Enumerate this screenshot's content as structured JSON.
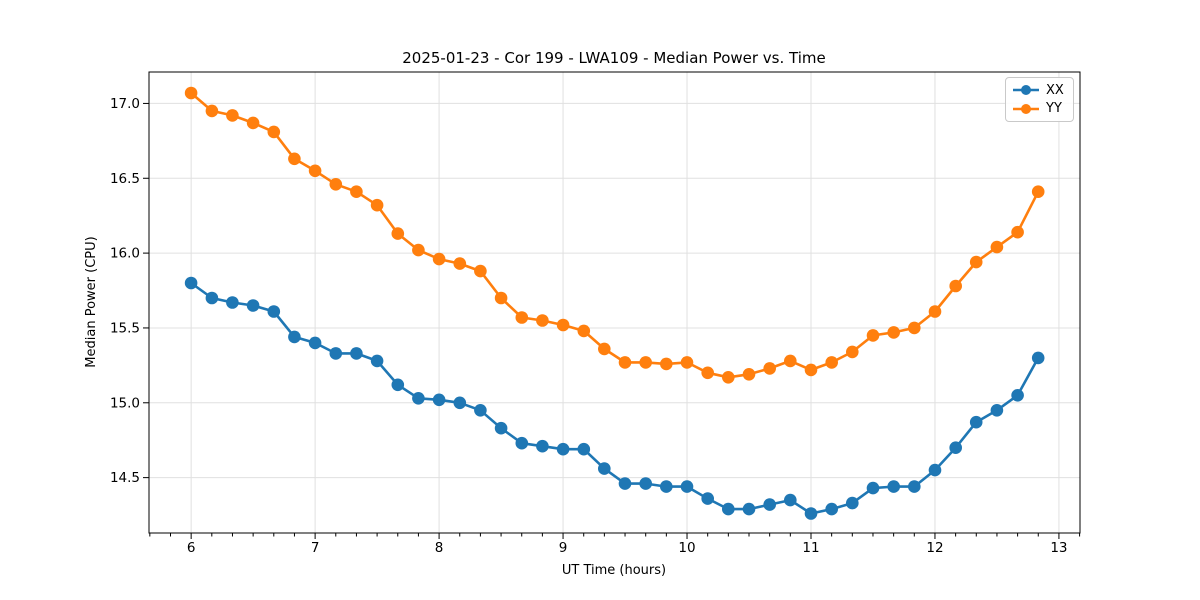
{
  "figure": {
    "background": "#ffffff",
    "spine_color": "#000000",
    "grid_color": "#e0e0e0",
    "tick_label_color": "#000000"
  },
  "legend": {
    "entries": [
      {
        "label": "XX",
        "color": "#1f77b4"
      },
      {
        "label": "YY",
        "color": "#ff7f0e"
      }
    ]
  },
  "chart_data": {
    "type": "line",
    "title": "2025-01-23 - Cor 199 - LWA109 - Median Power vs. Time",
    "xlabel": "UT Time (hours)",
    "ylabel": "Median Power (CPU)",
    "xlim": [
      5.66,
      13.17
    ],
    "ylim": [
      14.13,
      17.21
    ],
    "x_major_ticks": [
      6,
      7,
      8,
      9,
      10,
      11,
      12,
      13
    ],
    "x_minor_tick_step": 0.1667,
    "y_ticks": [
      14.5,
      15.0,
      15.5,
      16.0,
      16.5,
      17.0
    ],
    "grid": true,
    "legend_position": "upper right",
    "marker": "circle",
    "x": [
      6.0,
      6.167,
      6.333,
      6.5,
      6.667,
      6.833,
      7.0,
      7.167,
      7.333,
      7.5,
      7.667,
      7.833,
      8.0,
      8.167,
      8.333,
      8.5,
      8.667,
      8.833,
      9.0,
      9.167,
      9.333,
      9.5,
      9.667,
      9.833,
      10.0,
      10.167,
      10.333,
      10.5,
      10.667,
      10.833,
      11.0,
      11.167,
      11.333,
      11.5,
      11.667,
      11.833,
      12.0,
      12.167,
      12.333,
      12.5,
      12.667,
      12.833
    ],
    "series": [
      {
        "name": "XX",
        "color": "#1f77b4",
        "values": [
          15.8,
          15.7,
          15.67,
          15.65,
          15.61,
          15.44,
          15.4,
          15.33,
          15.33,
          15.28,
          15.12,
          15.03,
          15.02,
          15.0,
          14.95,
          14.83,
          14.73,
          14.71,
          14.69,
          14.69,
          14.56,
          14.46,
          14.46,
          14.44,
          14.44,
          14.36,
          14.29,
          14.29,
          14.32,
          14.35,
          14.26,
          14.29,
          14.33,
          14.43,
          14.44,
          14.44,
          14.55,
          14.7,
          14.87,
          14.95,
          15.05,
          15.3
        ]
      },
      {
        "name": "YY",
        "color": "#ff7f0e",
        "values": [
          17.07,
          16.95,
          16.92,
          16.87,
          16.81,
          16.63,
          16.55,
          16.46,
          16.41,
          16.32,
          16.13,
          16.02,
          15.96,
          15.93,
          15.88,
          15.7,
          15.57,
          15.55,
          15.52,
          15.48,
          15.36,
          15.27,
          15.27,
          15.26,
          15.27,
          15.2,
          15.17,
          15.19,
          15.23,
          15.28,
          15.22,
          15.27,
          15.34,
          15.45,
          15.47,
          15.5,
          15.61,
          15.78,
          15.94,
          16.04,
          16.14,
          16.41
        ]
      }
    ]
  }
}
